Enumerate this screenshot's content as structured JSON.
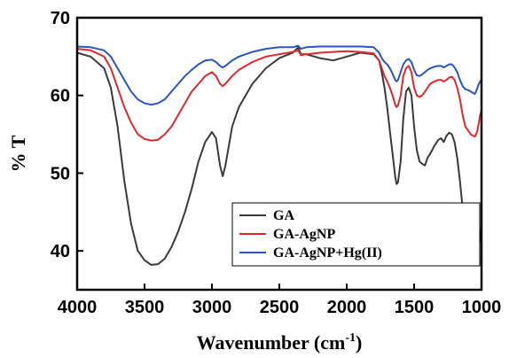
{
  "chart_data": {
    "type": "line",
    "title": "",
    "xlabel": "Wavenumber (cm",
    "xlabel_sup": "-1",
    "xlabel_close": ")",
    "ylabel": "% T",
    "xlim": [
      4000,
      1000
    ],
    "ylim": [
      35,
      70
    ],
    "x_ticks": [
      4000,
      3500,
      3000,
      2500,
      2000,
      1500,
      1000
    ],
    "y_ticks": [
      40,
      50,
      60,
      70
    ],
    "legend_position": "bottom-right",
    "grid": false,
    "series": [
      {
        "name": "GA",
        "color": "#3a3a3a",
        "points": [
          [
            4000,
            65.5
          ],
          [
            3900,
            65.0
          ],
          [
            3800,
            63.5
          ],
          [
            3750,
            61.0
          ],
          [
            3700,
            56.0
          ],
          [
            3650,
            49.0
          ],
          [
            3600,
            43.5
          ],
          [
            3550,
            40.0
          ],
          [
            3500,
            38.8
          ],
          [
            3450,
            38.2
          ],
          [
            3400,
            38.3
          ],
          [
            3350,
            39.0
          ],
          [
            3300,
            40.5
          ],
          [
            3250,
            42.5
          ],
          [
            3200,
            45.0
          ],
          [
            3150,
            48.0
          ],
          [
            3100,
            51.5
          ],
          [
            3050,
            54.0
          ],
          [
            3000,
            55.3
          ],
          [
            2970,
            54.5
          ],
          [
            2940,
            51.0
          ],
          [
            2920,
            49.6
          ],
          [
            2900,
            51.0
          ],
          [
            2870,
            54.0
          ],
          [
            2850,
            56.0
          ],
          [
            2800,
            58.5
          ],
          [
            2700,
            61.5
          ],
          [
            2600,
            63.5
          ],
          [
            2500,
            64.8
          ],
          [
            2400,
            65.5
          ],
          [
            2360,
            66.2
          ],
          [
            2340,
            65.3
          ],
          [
            2300,
            65.3
          ],
          [
            2200,
            64.8
          ],
          [
            2100,
            64.5
          ],
          [
            2000,
            65.0
          ],
          [
            1900,
            65.5
          ],
          [
            1800,
            65.3
          ],
          [
            1760,
            64.5
          ],
          [
            1740,
            63.0
          ],
          [
            1720,
            61.0
          ],
          [
            1700,
            58.5
          ],
          [
            1680,
            55.5
          ],
          [
            1660,
            52.5
          ],
          [
            1640,
            49.5
          ],
          [
            1630,
            48.6
          ],
          [
            1620,
            48.8
          ],
          [
            1600,
            51.5
          ],
          [
            1580,
            57.0
          ],
          [
            1560,
            60.5
          ],
          [
            1540,
            61.0
          ],
          [
            1520,
            60.0
          ],
          [
            1500,
            56.0
          ],
          [
            1480,
            53.0
          ],
          [
            1460,
            51.5
          ],
          [
            1440,
            51.2
          ],
          [
            1420,
            51.0
          ],
          [
            1400,
            52.0
          ],
          [
            1380,
            52.5
          ],
          [
            1350,
            53.5
          ],
          [
            1320,
            54.3
          ],
          [
            1300,
            54.5
          ],
          [
            1280,
            54.0
          ],
          [
            1260,
            54.8
          ],
          [
            1240,
            55.2
          ],
          [
            1220,
            55.0
          ],
          [
            1200,
            54.0
          ],
          [
            1180,
            52.0
          ],
          [
            1160,
            49.0
          ],
          [
            1140,
            45.5
          ],
          [
            1120,
            42.5
          ],
          [
            1100,
            41.5
          ],
          [
            1090,
            40.5
          ],
          [
            1080,
            39.5
          ],
          [
            1070,
            38.8
          ],
          [
            1060,
            38.5
          ],
          [
            1050,
            39.0
          ],
          [
            1040,
            39.5
          ],
          [
            1030,
            40.0
          ],
          [
            1020,
            40.5
          ],
          [
            1010,
            41.5
          ],
          [
            1000,
            43.0
          ]
        ]
      },
      {
        "name": "GA-AgNP",
        "color": "#e0282e",
        "points": [
          [
            4000,
            66.0
          ],
          [
            3900,
            65.8
          ],
          [
            3800,
            65.0
          ],
          [
            3750,
            63.5
          ],
          [
            3700,
            61.0
          ],
          [
            3650,
            58.5
          ],
          [
            3600,
            56.5
          ],
          [
            3550,
            55.0
          ],
          [
            3500,
            54.4
          ],
          [
            3450,
            54.2
          ],
          [
            3400,
            54.3
          ],
          [
            3350,
            55.0
          ],
          [
            3300,
            56.0
          ],
          [
            3250,
            57.5
          ],
          [
            3200,
            59.0
          ],
          [
            3150,
            60.5
          ],
          [
            3100,
            61.5
          ],
          [
            3050,
            62.5
          ],
          [
            3000,
            63.0
          ],
          [
            2970,
            62.5
          ],
          [
            2940,
            61.5
          ],
          [
            2920,
            61.2
          ],
          [
            2900,
            61.5
          ],
          [
            2850,
            62.5
          ],
          [
            2800,
            63.3
          ],
          [
            2700,
            64.3
          ],
          [
            2600,
            65.0
          ],
          [
            2500,
            65.3
          ],
          [
            2400,
            65.6
          ],
          [
            2360,
            65.8
          ],
          [
            2340,
            65.2
          ],
          [
            2300,
            65.3
          ],
          [
            2200,
            65.5
          ],
          [
            2100,
            65.6
          ],
          [
            2000,
            65.7
          ],
          [
            1900,
            65.6
          ],
          [
            1800,
            65.4
          ],
          [
            1760,
            64.5
          ],
          [
            1740,
            63.5
          ],
          [
            1720,
            62.5
          ],
          [
            1700,
            61.8
          ],
          [
            1680,
            61.0
          ],
          [
            1660,
            60.0
          ],
          [
            1640,
            58.8
          ],
          [
            1630,
            58.5
          ],
          [
            1620,
            58.7
          ],
          [
            1600,
            60.0
          ],
          [
            1580,
            62.5
          ],
          [
            1560,
            63.5
          ],
          [
            1540,
            63.8
          ],
          [
            1520,
            63.0
          ],
          [
            1500,
            61.0
          ],
          [
            1480,
            60.0
          ],
          [
            1460,
            59.8
          ],
          [
            1440,
            60.0
          ],
          [
            1420,
            60.5
          ],
          [
            1400,
            61.0
          ],
          [
            1380,
            61.5
          ],
          [
            1350,
            61.8
          ],
          [
            1320,
            62.0
          ],
          [
            1300,
            62.0
          ],
          [
            1280,
            61.8
          ],
          [
            1260,
            62.0
          ],
          [
            1240,
            62.3
          ],
          [
            1220,
            62.4
          ],
          [
            1200,
            62.0
          ],
          [
            1180,
            61.0
          ],
          [
            1160,
            59.5
          ],
          [
            1140,
            57.5
          ],
          [
            1120,
            56.0
          ],
          [
            1100,
            55.5
          ],
          [
            1080,
            55.0
          ],
          [
            1060,
            54.8
          ],
          [
            1050,
            54.7
          ],
          [
            1040,
            55.0
          ],
          [
            1030,
            55.5
          ],
          [
            1020,
            56.5
          ],
          [
            1010,
            57.5
          ],
          [
            1000,
            58.0
          ]
        ]
      },
      {
        "name": "GA-AgNP+Hg(II)",
        "color": "#2a55c0",
        "points": [
          [
            4000,
            66.3
          ],
          [
            3900,
            66.2
          ],
          [
            3800,
            65.8
          ],
          [
            3750,
            65.0
          ],
          [
            3700,
            63.5
          ],
          [
            3650,
            62.0
          ],
          [
            3600,
            60.5
          ],
          [
            3550,
            59.5
          ],
          [
            3500,
            59.0
          ],
          [
            3450,
            58.8
          ],
          [
            3400,
            59.0
          ],
          [
            3350,
            59.5
          ],
          [
            3300,
            60.5
          ],
          [
            3250,
            61.5
          ],
          [
            3200,
            62.5
          ],
          [
            3150,
            63.3
          ],
          [
            3100,
            64.0
          ],
          [
            3050,
            64.5
          ],
          [
            3000,
            64.6
          ],
          [
            2970,
            64.3
          ],
          [
            2940,
            63.8
          ],
          [
            2920,
            63.6
          ],
          [
            2900,
            63.8
          ],
          [
            2850,
            64.5
          ],
          [
            2800,
            65.0
          ],
          [
            2700,
            65.6
          ],
          [
            2600,
            66.0
          ],
          [
            2500,
            66.2
          ],
          [
            2400,
            66.2
          ],
          [
            2360,
            66.4
          ],
          [
            2340,
            66.0
          ],
          [
            2300,
            66.2
          ],
          [
            2200,
            66.3
          ],
          [
            2100,
            66.3
          ],
          [
            2000,
            66.3
          ],
          [
            1900,
            66.3
          ],
          [
            1800,
            66.2
          ],
          [
            1760,
            65.5
          ],
          [
            1740,
            64.8
          ],
          [
            1720,
            64.3
          ],
          [
            1700,
            64.0
          ],
          [
            1680,
            63.5
          ],
          [
            1660,
            62.8
          ],
          [
            1640,
            62.0
          ],
          [
            1630,
            61.8
          ],
          [
            1620,
            62.0
          ],
          [
            1600,
            63.0
          ],
          [
            1580,
            64.0
          ],
          [
            1560,
            64.5
          ],
          [
            1540,
            64.7
          ],
          [
            1520,
            64.3
          ],
          [
            1500,
            63.3
          ],
          [
            1480,
            62.6
          ],
          [
            1460,
            62.5
          ],
          [
            1440,
            62.7
          ],
          [
            1420,
            63.0
          ],
          [
            1400,
            63.3
          ],
          [
            1380,
            63.5
          ],
          [
            1350,
            63.7
          ],
          [
            1320,
            63.8
          ],
          [
            1300,
            63.8
          ],
          [
            1280,
            63.6
          ],
          [
            1260,
            63.8
          ],
          [
            1240,
            64.0
          ],
          [
            1220,
            64.0
          ],
          [
            1200,
            63.6
          ],
          [
            1180,
            63.0
          ],
          [
            1160,
            62.0
          ],
          [
            1140,
            61.2
          ],
          [
            1120,
            60.8
          ],
          [
            1100,
            60.7
          ],
          [
            1080,
            60.5
          ],
          [
            1060,
            60.3
          ],
          [
            1050,
            60.2
          ],
          [
            1040,
            60.5
          ],
          [
            1030,
            61.0
          ],
          [
            1020,
            61.5
          ],
          [
            1010,
            61.8
          ],
          [
            1000,
            62.0
          ]
        ]
      }
    ]
  }
}
